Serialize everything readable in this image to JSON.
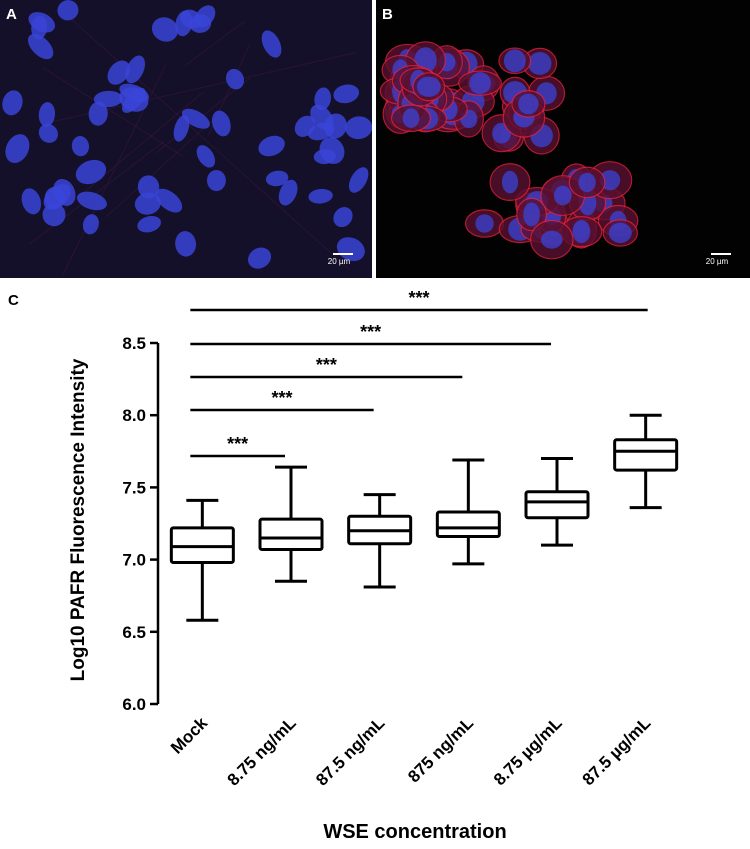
{
  "panels": {
    "a": {
      "letter": "A",
      "scale_label": "20 µm"
    },
    "b": {
      "letter": "B",
      "scale_label": "20 µm"
    },
    "c": {
      "letter": "C"
    }
  },
  "colors": {
    "nucleus": "#3a44d8",
    "membrane": "#e0203a",
    "box_line": "#000000"
  },
  "chart_data": {
    "type": "box",
    "title": "",
    "xlabel": "WSE concentration",
    "ylabel": "Log10 PAFR Fluorescence Intensity",
    "ylim": [
      6.0,
      8.5
    ],
    "yticks": [
      "6.0",
      "6.5",
      "7.0",
      "7.5",
      "8.0",
      "8.5"
    ],
    "categories": [
      "Mock",
      "8.75 ng/mL",
      "87.5 ng/mL",
      "875 ng/mL",
      "8.75 µg/mL",
      "87.5 µg/mL"
    ],
    "boxes": [
      {
        "min": 6.58,
        "q1": 6.98,
        "median": 7.09,
        "q3": 7.22,
        "max": 7.41
      },
      {
        "min": 6.85,
        "q1": 7.07,
        "median": 7.15,
        "q3": 7.28,
        "max": 7.64
      },
      {
        "min": 6.81,
        "q1": 7.11,
        "median": 7.2,
        "q3": 7.3,
        "max": 7.45
      },
      {
        "min": 6.97,
        "q1": 7.16,
        "median": 7.22,
        "q3": 7.33,
        "max": 7.69
      },
      {
        "min": 7.1,
        "q1": 7.29,
        "median": 7.4,
        "q3": 7.47,
        "max": 7.7
      },
      {
        "min": 7.36,
        "q1": 7.62,
        "median": 7.75,
        "q3": 7.83,
        "max": 8.0
      }
    ],
    "significance": [
      {
        "from": 0,
        "to": 1,
        "label": "***"
      },
      {
        "from": 0,
        "to": 2,
        "label": "***"
      },
      {
        "from": 0,
        "to": 3,
        "label": "***"
      },
      {
        "from": 0,
        "to": 4,
        "label": "***"
      },
      {
        "from": 0,
        "to": 5,
        "label": "***"
      }
    ]
  }
}
